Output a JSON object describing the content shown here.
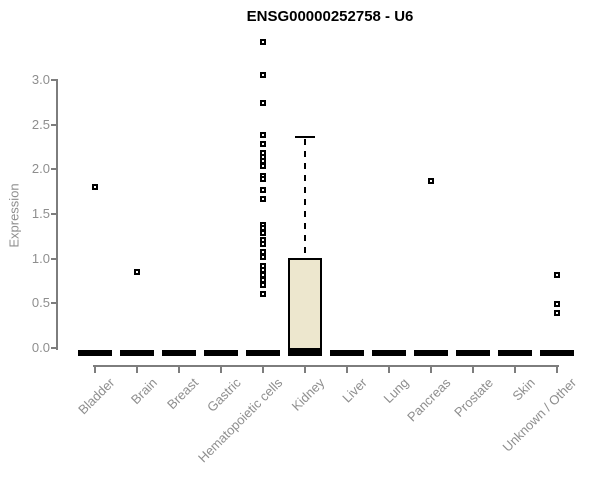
{
  "title": "ENSG00000252758 - U6",
  "y_axis": {
    "label": "Expression",
    "ticks": [
      {
        "value": 0.0,
        "label": "0.0"
      },
      {
        "value": 0.5,
        "label": "0.5"
      },
      {
        "value": 1.0,
        "label": "1.0"
      },
      {
        "value": 1.5,
        "label": "1.5"
      },
      {
        "value": 2.0,
        "label": "2.0"
      },
      {
        "value": 2.5,
        "label": "2.5"
      },
      {
        "value": 3.0,
        "label": "3.0"
      }
    ]
  },
  "chart_data": {
    "type": "boxplot",
    "title": "ENSG00000252758 - U6",
    "xlabel": "",
    "ylabel": "Expression",
    "ylim": [
      0,
      3.45
    ],
    "y_ticks": [
      0.0,
      0.5,
      1.0,
      1.5,
      2.0,
      2.5,
      3.0
    ],
    "grid": false,
    "legend": "none",
    "categories": [
      "Bladder",
      "Brain",
      "Breast",
      "Gastric",
      "Hematopoietic cells",
      "Kidney",
      "Liver",
      "Lung",
      "Pancreas",
      "Prostate",
      "Skin",
      "Unknown / Other"
    ],
    "series": [
      {
        "category": "Bladder",
        "q1": 0,
        "median": 0,
        "q3": 0,
        "whisker_low": 0,
        "whisker_high": 0,
        "outliers": [
          1.8
        ]
      },
      {
        "category": "Brain",
        "q1": 0,
        "median": 0,
        "q3": 0,
        "whisker_low": 0,
        "whisker_high": 0,
        "outliers": [
          0.85
        ]
      },
      {
        "category": "Breast",
        "q1": 0,
        "median": 0,
        "q3": 0,
        "whisker_low": 0,
        "whisker_high": 0,
        "outliers": []
      },
      {
        "category": "Gastric",
        "q1": 0,
        "median": 0,
        "q3": 0,
        "whisker_low": 0,
        "whisker_high": 0,
        "outliers": []
      },
      {
        "category": "Hematopoietic cells",
        "q1": 0,
        "median": 0,
        "q3": 0,
        "whisker_low": 0,
        "whisker_high": 0,
        "outliers": [
          3.42,
          3.06,
          2.74,
          2.39,
          2.28,
          2.18,
          2.14,
          2.09,
          2.04,
          1.92,
          1.89,
          1.77,
          1.67,
          1.38,
          1.34,
          1.29,
          1.21,
          1.16,
          1.07,
          1.02,
          0.92,
          0.87,
          0.82,
          0.76,
          0.71,
          0.6
        ]
      },
      {
        "category": "Kidney",
        "q1": 0,
        "median": 0,
        "q3": 1.01,
        "whisker_low": 0,
        "whisker_high": 2.37,
        "outliers": []
      },
      {
        "category": "Liver",
        "q1": 0,
        "median": 0,
        "q3": 0,
        "whisker_low": 0,
        "whisker_high": 0,
        "outliers": []
      },
      {
        "category": "Lung",
        "q1": 0,
        "median": 0,
        "q3": 0,
        "whisker_low": 0,
        "whisker_high": 0,
        "outliers": []
      },
      {
        "category": "Pancreas",
        "q1": 0,
        "median": 0,
        "q3": 0,
        "whisker_low": 0,
        "whisker_high": 0,
        "outliers": [
          1.87
        ]
      },
      {
        "category": "Prostate",
        "q1": 0,
        "median": 0,
        "q3": 0,
        "whisker_low": 0,
        "whisker_high": 0,
        "outliers": []
      },
      {
        "category": "Skin",
        "q1": 0,
        "median": 0,
        "q3": 0,
        "whisker_low": 0,
        "whisker_high": 0,
        "outliers": []
      },
      {
        "category": "Unknown / Other",
        "q1": 0,
        "median": 0,
        "q3": 0,
        "whisker_low": 0,
        "whisker_high": 0,
        "outliers": [
          0.82,
          0.49,
          0.39
        ]
      }
    ],
    "colors": {
      "box_fill": "#EDE7CE",
      "box_border": "#000000",
      "median": "#000000",
      "outlier": "#000000",
      "axis": "#7D7D7D",
      "tick_label": "#8E8E8E",
      "title": "#000000",
      "background": "#FFFFFF"
    }
  }
}
